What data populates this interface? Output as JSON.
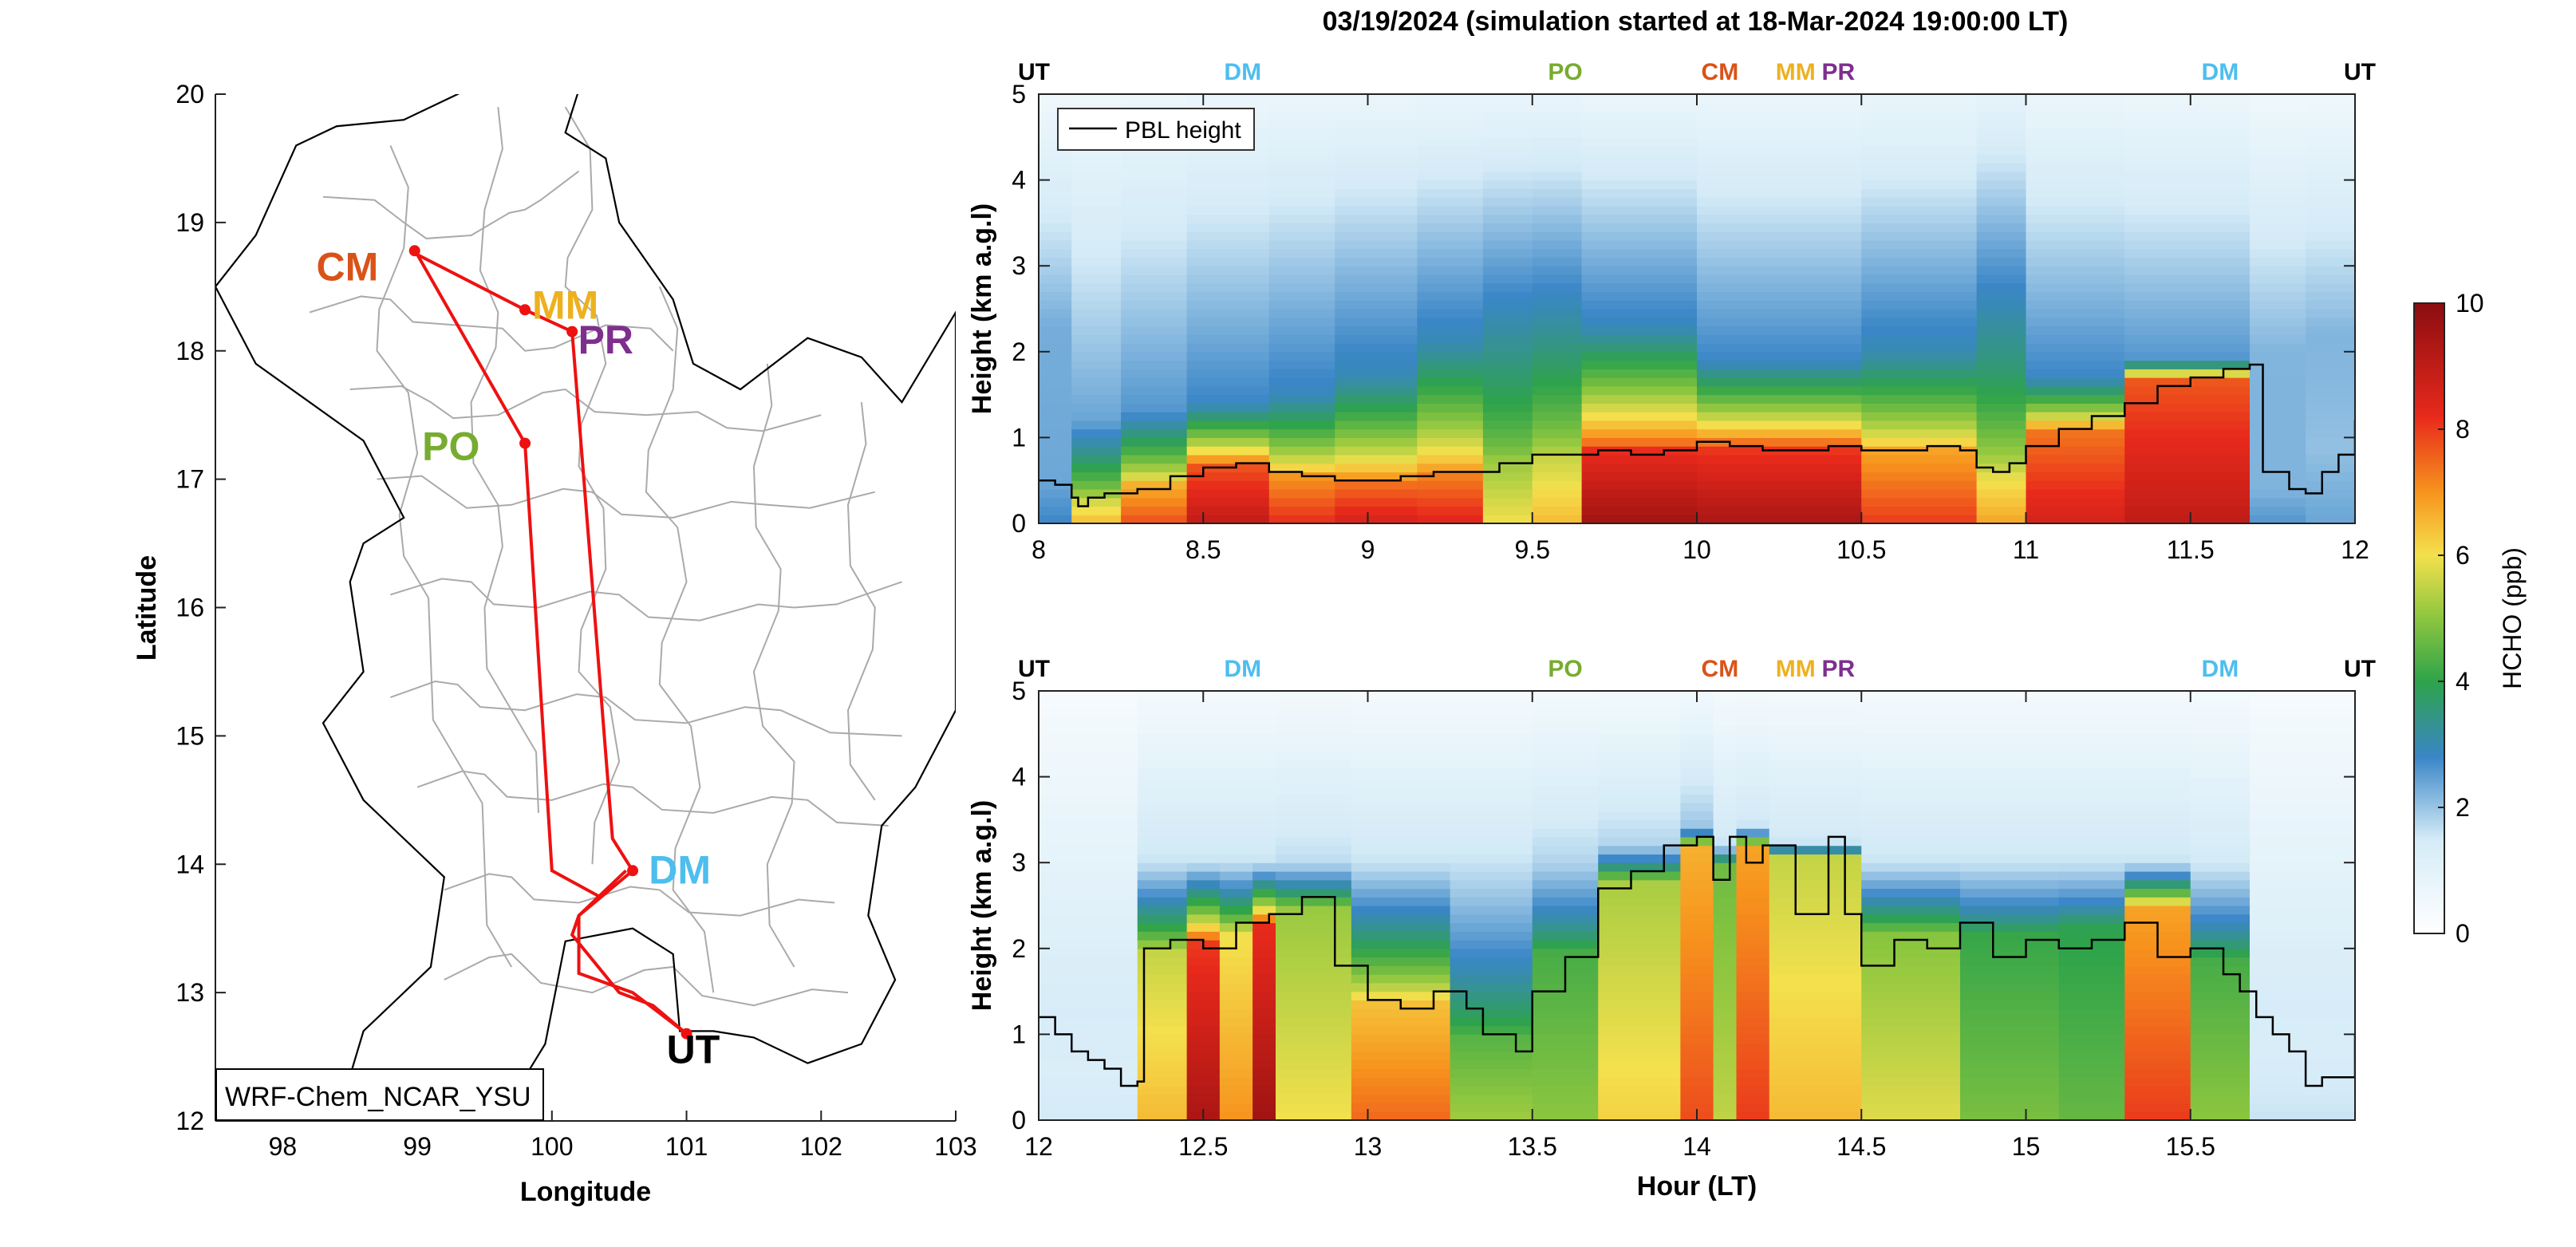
{
  "title": "03/19/2024 (simulation started at 18-Mar-2024 19:00:00 LT)",
  "map": {
    "xlabel": "Longitude",
    "ylabel": "Latitude",
    "xticks": [
      98,
      99,
      100,
      101,
      102,
      103
    ],
    "yticks": [
      12,
      13,
      14,
      15,
      16,
      17,
      18,
      19,
      20
    ],
    "xlim": [
      97.5,
      103
    ],
    "ylim": [
      12,
      20
    ],
    "model_label": "WRF-Chem_NCAR_YSU",
    "route_color": "#ee1111",
    "route": [
      [
        101.0,
        12.68
      ],
      [
        100.6,
        13.0
      ],
      [
        100.2,
        13.15
      ],
      [
        100.2,
        13.6
      ],
      [
        100.55,
        13.95
      ],
      [
        100.35,
        13.75
      ],
      [
        100.0,
        13.95
      ],
      [
        99.8,
        17.28
      ],
      [
        99.0,
        18.75
      ],
      [
        99.8,
        18.32
      ],
      [
        100.15,
        18.15
      ],
      [
        100.45,
        14.2
      ],
      [
        100.6,
        13.95
      ],
      [
        100.2,
        13.6
      ],
      [
        100.15,
        13.45
      ],
      [
        100.5,
        13.0
      ],
      [
        100.75,
        12.9
      ],
      [
        101.0,
        12.68
      ]
    ],
    "sites": [
      {
        "code": "CM",
        "lon": 98.98,
        "lat": 18.78,
        "color": "#d95319",
        "label_lon": 98.48,
        "label_lat": 18.55
      },
      {
        "code": "MM",
        "lon": 99.8,
        "lat": 18.32,
        "color": "#edb120",
        "label_lon": 100.1,
        "label_lat": 18.25
      },
      {
        "code": "PR",
        "lon": 100.15,
        "lat": 18.15,
        "color": "#7e2f8e",
        "label_lon": 100.4,
        "label_lat": 17.98
      },
      {
        "code": "PO",
        "lon": 99.8,
        "lat": 17.28,
        "color": "#77ac30",
        "label_lon": 99.25,
        "label_lat": 17.15
      },
      {
        "code": "DM",
        "lon": 100.6,
        "lat": 13.95,
        "color": "#4dbeee",
        "label_lon": 100.95,
        "label_lat": 13.85
      },
      {
        "code": "UT",
        "lon": 101.0,
        "lat": 12.68,
        "color": "#000000",
        "label_lon": 101.05,
        "label_lat": 12.45
      }
    ]
  },
  "chart_data": [
    {
      "type": "heatmap",
      "name": "top-panel",
      "xlabel": "",
      "ylabel": "Height (km a.g.l)",
      "xlim": [
        8,
        12
      ],
      "ylim": [
        0,
        5
      ],
      "xticks": [
        8,
        8.5,
        9,
        9.5,
        10,
        10.5,
        11,
        11.5,
        12
      ],
      "yticks": [
        0,
        1,
        2,
        3,
        4,
        5
      ],
      "legend": "PBL height",
      "legend_position": "top-left",
      "site_markers": [
        {
          "code": "UT",
          "x": 8.0,
          "color": "#000000"
        },
        {
          "code": "DM",
          "x": 8.62,
          "color": "#4dbeee"
        },
        {
          "code": "PO",
          "x": 9.6,
          "color": "#77ac30"
        },
        {
          "code": "CM",
          "x": 10.07,
          "color": "#d95319"
        },
        {
          "code": "MM",
          "x": 10.3,
          "color": "#edb120"
        },
        {
          "code": "PR",
          "x": 10.43,
          "color": "#7e2f8e"
        },
        {
          "code": "DM",
          "x": 11.59,
          "color": "#4dbeee"
        },
        {
          "code": "UT",
          "x": 11.96,
          "color": "#000000"
        }
      ],
      "columns": [
        {
          "x0": 8.0,
          "x1": 8.1,
          "pbl": 0.5,
          "surf": 2.8,
          "top": 2.3,
          "free": 2.3
        },
        {
          "x0": 8.1,
          "x1": 8.25,
          "pbl": 0.3,
          "surf": 6.5,
          "top": 1.2,
          "free": 2.4
        },
        {
          "x0": 8.25,
          "x1": 8.45,
          "pbl": 0.45,
          "surf": 7.8,
          "top": 1.3,
          "free": 2.6
        },
        {
          "x0": 8.45,
          "x1": 8.7,
          "pbl": 0.7,
          "surf": 9.0,
          "top": 1.4,
          "free": 2.8
        },
        {
          "x0": 8.7,
          "x1": 8.9,
          "pbl": 0.55,
          "surf": 8.2,
          "top": 1.5,
          "free": 2.9
        },
        {
          "x0": 8.9,
          "x1": 9.15,
          "pbl": 0.5,
          "surf": 8.6,
          "top": 1.7,
          "free": 3.0
        },
        {
          "x0": 9.15,
          "x1": 9.35,
          "pbl": 0.6,
          "surf": 8.4,
          "top": 2.1,
          "free": 3.0
        },
        {
          "x0": 9.35,
          "x1": 9.5,
          "pbl": 0.75,
          "surf": 6.0,
          "top": 2.4,
          "free": 3.0
        },
        {
          "x0": 9.5,
          "x1": 9.65,
          "pbl": 0.8,
          "surf": 6.5,
          "top": 2.5,
          "free": 3.0
        },
        {
          "x0": 9.65,
          "x1": 10.0,
          "pbl": 0.85,
          "surf": 9.6,
          "top": 2.3,
          "free": 2.9
        },
        {
          "x0": 10.0,
          "x1": 10.5,
          "pbl": 0.9,
          "surf": 9.4,
          "top": 1.9,
          "free": 2.8
        },
        {
          "x0": 10.5,
          "x1": 10.85,
          "pbl": 0.85,
          "surf": 8.0,
          "top": 2.0,
          "free": 3.0
        },
        {
          "x0": 10.85,
          "x1": 11.0,
          "pbl": 0.6,
          "surf": 6.8,
          "top": 1.8,
          "free": 3.6
        },
        {
          "x0": 11.0,
          "x1": 11.3,
          "pbl": 1.1,
          "surf": 8.6,
          "top": 1.7,
          "free": 2.8
        },
        {
          "x0": 11.3,
          "x1": 11.68,
          "pbl": 1.7,
          "surf": 9.0,
          "top": 1.9,
          "free": 2.6
        },
        {
          "x0": 11.68,
          "x1": 11.85,
          "pbl": 0.4,
          "surf": 2.6,
          "top": 2.0,
          "free": 2.2
        },
        {
          "x0": 11.85,
          "x1": 12.0,
          "pbl": 0.9,
          "surf": 2.4,
          "top": 2.2,
          "free": 2.2
        }
      ],
      "pbl_line": {
        "x": [
          8.0,
          8.05,
          8.1,
          8.12,
          8.15,
          8.2,
          8.3,
          8.4,
          8.5,
          8.6,
          8.7,
          8.8,
          8.9,
          9.0,
          9.1,
          9.2,
          9.3,
          9.4,
          9.5,
          9.6,
          9.7,
          9.8,
          9.9,
          10.0,
          10.1,
          10.2,
          10.3,
          10.4,
          10.5,
          10.6,
          10.7,
          10.8,
          10.85,
          10.9,
          10.95,
          11.0,
          11.1,
          11.2,
          11.3,
          11.4,
          11.5,
          11.6,
          11.68,
          11.72,
          11.8,
          11.85,
          11.9,
          11.95,
          12.0
        ],
        "y": [
          0.5,
          0.45,
          0.3,
          0.2,
          0.3,
          0.35,
          0.4,
          0.55,
          0.65,
          0.7,
          0.6,
          0.55,
          0.5,
          0.5,
          0.55,
          0.6,
          0.6,
          0.7,
          0.8,
          0.8,
          0.85,
          0.8,
          0.85,
          0.95,
          0.9,
          0.85,
          0.85,
          0.9,
          0.85,
          0.85,
          0.9,
          0.85,
          0.65,
          0.6,
          0.7,
          0.9,
          1.1,
          1.25,
          1.4,
          1.6,
          1.7,
          1.8,
          1.85,
          0.6,
          0.4,
          0.35,
          0.6,
          0.8,
          1.2
        ]
      }
    },
    {
      "type": "heatmap",
      "name": "bottom-panel",
      "xlabel": "Hour (LT)",
      "ylabel": "Height (km a.g.l)",
      "xlim": [
        12,
        16
      ],
      "ylim": [
        0,
        5
      ],
      "xticks": [
        12,
        12.5,
        13,
        13.5,
        14,
        14.5,
        15,
        15.5
      ],
      "yticks": [
        0,
        1,
        2,
        3,
        4,
        5
      ],
      "site_markers": [
        {
          "code": "UT",
          "x": 12.0,
          "color": "#000000"
        },
        {
          "code": "DM",
          "x": 12.62,
          "color": "#4dbeee"
        },
        {
          "code": "PO",
          "x": 13.6,
          "color": "#77ac30"
        },
        {
          "code": "CM",
          "x": 14.07,
          "color": "#d95319"
        },
        {
          "code": "MM",
          "x": 14.3,
          "color": "#edb120"
        },
        {
          "code": "PR",
          "x": 14.43,
          "color": "#7e2f8e"
        },
        {
          "code": "DM",
          "x": 15.59,
          "color": "#4dbeee"
        },
        {
          "code": "UT",
          "x": 15.96,
          "color": "#000000"
        }
      ],
      "columns": [
        {
          "x0": 12.0,
          "x1": 12.3,
          "pbl": 0.6,
          "surf": 1.5,
          "top": 1.3,
          "free": 1.4
        },
        {
          "x0": 12.3,
          "x1": 12.45,
          "pbl": 2.0,
          "surf": 6.5,
          "top": 3.0,
          "free": 1.6
        },
        {
          "x0": 12.45,
          "x1": 12.55,
          "pbl": 2.1,
          "surf": 9.4,
          "top": 3.0,
          "free": 1.6
        },
        {
          "x0": 12.55,
          "x1": 12.65,
          "pbl": 2.2,
          "surf": 7.0,
          "top": 3.0,
          "free": 1.6
        },
        {
          "x0": 12.65,
          "x1": 12.72,
          "pbl": 2.3,
          "surf": 9.6,
          "top": 3.0,
          "free": 1.6
        },
        {
          "x0": 12.72,
          "x1": 12.95,
          "pbl": 2.5,
          "surf": 6.0,
          "top": 3.0,
          "free": 1.7
        },
        {
          "x0": 12.95,
          "x1": 13.25,
          "pbl": 1.4,
          "surf": 7.5,
          "top": 3.0,
          "free": 1.6
        },
        {
          "x0": 13.25,
          "x1": 13.5,
          "pbl": 1.0,
          "surf": 5.2,
          "top": 3.0,
          "free": 1.6
        },
        {
          "x0": 13.5,
          "x1": 13.7,
          "pbl": 2.0,
          "surf": 5.0,
          "top": 3.0,
          "free": 1.8
        },
        {
          "x0": 13.7,
          "x1": 13.95,
          "pbl": 2.8,
          "surf": 6.2,
          "top": 3.2,
          "free": 1.8
        },
        {
          "x0": 13.95,
          "x1": 14.05,
          "pbl": 3.2,
          "surf": 7.8,
          "top": 3.4,
          "free": 2.0
        },
        {
          "x0": 14.05,
          "x1": 14.12,
          "pbl": 3.0,
          "surf": 5.5,
          "top": 3.2,
          "free": 1.6
        },
        {
          "x0": 14.12,
          "x1": 14.22,
          "pbl": 3.2,
          "surf": 8.0,
          "top": 3.4,
          "free": 1.6
        },
        {
          "x0": 14.22,
          "x1": 14.5,
          "pbl": 3.1,
          "surf": 6.5,
          "top": 3.2,
          "free": 1.6
        },
        {
          "x0": 14.5,
          "x1": 14.8,
          "pbl": 2.2,
          "surf": 5.8,
          "top": 3.0,
          "free": 1.6
        },
        {
          "x0": 14.8,
          "x1": 15.1,
          "pbl": 2.2,
          "surf": 4.8,
          "top": 3.0,
          "free": 1.6
        },
        {
          "x0": 15.1,
          "x1": 15.3,
          "pbl": 2.3,
          "surf": 4.6,
          "top": 3.0,
          "free": 1.6
        },
        {
          "x0": 15.3,
          "x1": 15.5,
          "pbl": 2.5,
          "surf": 8.0,
          "top": 3.0,
          "free": 1.6
        },
        {
          "x0": 15.5,
          "x1": 15.68,
          "pbl": 1.9,
          "surf": 5.0,
          "top": 3.0,
          "free": 1.5
        },
        {
          "x0": 15.68,
          "x1": 16.0,
          "pbl": 0.8,
          "surf": 1.6,
          "top": 1.4,
          "free": 1.4
        }
      ],
      "pbl_line": {
        "x": [
          12.0,
          12.05,
          12.1,
          12.15,
          12.2,
          12.25,
          12.3,
          12.32,
          12.4,
          12.5,
          12.6,
          12.7,
          12.8,
          12.85,
          12.9,
          13.0,
          13.1,
          13.2,
          13.3,
          13.35,
          13.45,
          13.5,
          13.6,
          13.7,
          13.8,
          13.9,
          14.0,
          14.05,
          14.1,
          14.15,
          14.2,
          14.3,
          14.4,
          14.45,
          14.5,
          14.6,
          14.7,
          14.8,
          14.9,
          15.0,
          15.1,
          15.2,
          15.3,
          15.4,
          15.5,
          15.6,
          15.65,
          15.7,
          15.75,
          15.8,
          15.85,
          15.9,
          15.95,
          16.0
        ],
        "y": [
          1.2,
          1.0,
          0.8,
          0.7,
          0.6,
          0.4,
          0.45,
          2.0,
          2.1,
          2.0,
          2.3,
          2.4,
          2.6,
          2.6,
          1.8,
          1.4,
          1.3,
          1.5,
          1.3,
          1.0,
          0.8,
          1.5,
          1.9,
          2.7,
          2.9,
          3.2,
          3.3,
          2.8,
          3.3,
          3.0,
          3.2,
          2.4,
          3.3,
          2.4,
          1.8,
          2.1,
          2.0,
          2.3,
          1.9,
          2.1,
          2.0,
          2.1,
          2.3,
          1.9,
          2.0,
          1.7,
          1.5,
          1.2,
          1.0,
          0.8,
          0.4,
          0.5,
          0.5,
          1.0
        ]
      }
    }
  ],
  "colorbar": {
    "label": "HCHO (ppb)",
    "ticks": [
      0,
      2,
      4,
      6,
      8,
      10
    ],
    "lim": [
      0,
      10
    ],
    "stops": [
      {
        "v": 0.0,
        "c": "#ffffff"
      },
      {
        "v": 0.15,
        "c": "#d4ebf7"
      },
      {
        "v": 0.28,
        "c": "#3a86c7"
      },
      {
        "v": 0.4,
        "c": "#2ea34a"
      },
      {
        "v": 0.5,
        "c": "#8cc63f"
      },
      {
        "v": 0.6,
        "c": "#f4e04d"
      },
      {
        "v": 0.7,
        "c": "#f7941d"
      },
      {
        "v": 0.82,
        "c": "#e8291c"
      },
      {
        "v": 1.0,
        "c": "#8b0d10"
      }
    ]
  }
}
